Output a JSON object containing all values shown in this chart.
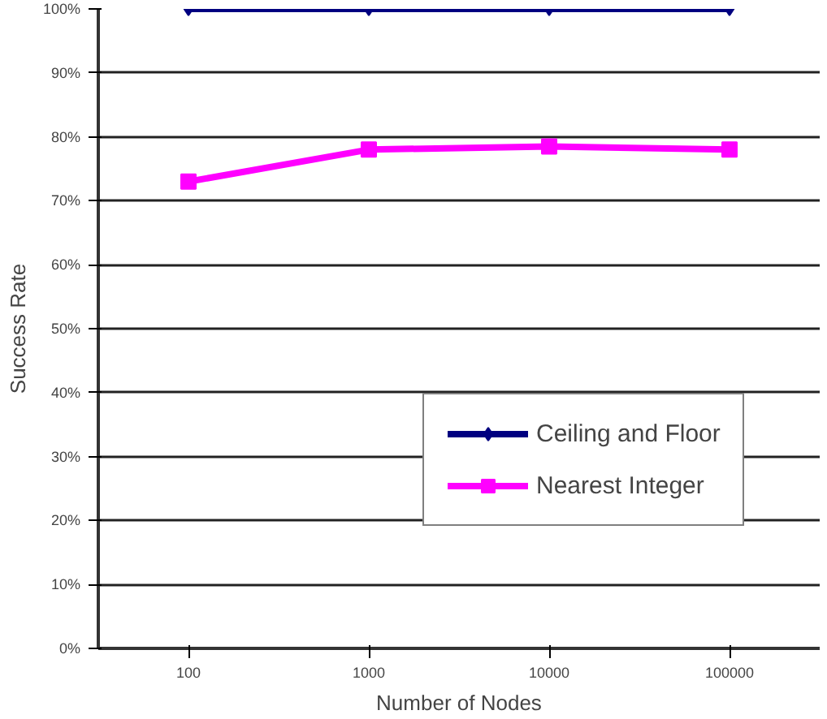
{
  "chart_data": {
    "type": "line",
    "xlabel": "Number of Nodes",
    "ylabel": "Success Rate",
    "categories": [
      "100",
      "1000",
      "10000",
      "100000"
    ],
    "series": [
      {
        "name": "Ceiling and Floor",
        "color": "#000080",
        "values": [
          100,
          100,
          100,
          100
        ],
        "marker": "diamond"
      },
      {
        "name": "Nearest Integer",
        "color": "#ff00ff",
        "values": [
          73,
          78,
          78.5,
          78
        ],
        "marker": "square"
      }
    ],
    "ylim": [
      0,
      100
    ],
    "yticks": [
      {
        "value": 0,
        "label": "0%"
      },
      {
        "value": 10,
        "label": "10%"
      },
      {
        "value": 20,
        "label": "20%"
      },
      {
        "value": 30,
        "label": "30%"
      },
      {
        "value": 40,
        "label": "40%"
      },
      {
        "value": 50,
        "label": "50%"
      },
      {
        "value": 60,
        "label": "60%"
      },
      {
        "value": 70,
        "label": "70%"
      },
      {
        "value": 80,
        "label": "80%"
      },
      {
        "value": 90,
        "label": "90%"
      },
      {
        "value": 100,
        "label": "100%"
      }
    ],
    "grid": "y",
    "legend": "bottom right",
    "line_style": "solid"
  }
}
